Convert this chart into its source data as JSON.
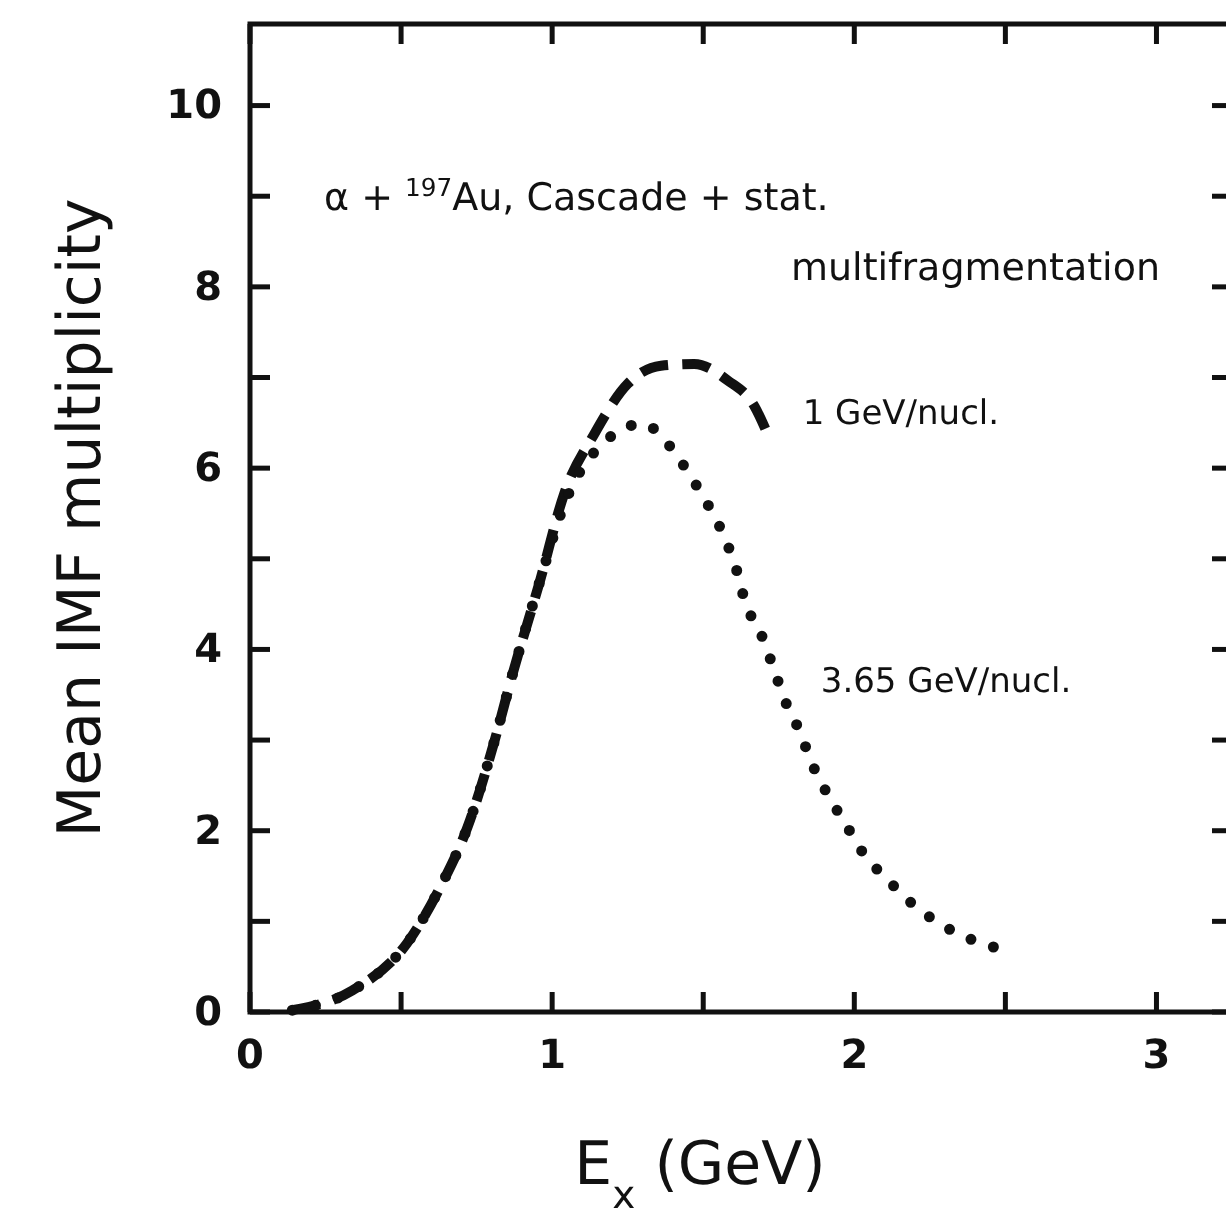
{
  "chart_data": {
    "type": "line",
    "xlabel": "E$_{x}$ (GeV)",
    "ylabel": "Mean IMF multiplicity",
    "annotations": [
      "α + $^{197}$Au, Cascade + stat.",
      "multifragmentation"
    ],
    "xlim": [
      0,
      3.25
    ],
    "ylim": [
      0,
      10.9
    ],
    "xticks": [
      0,
      {
        "value": 0.5,
        "label": null
      },
      1,
      {
        "value": 1.5,
        "label": null
      },
      2,
      {
        "value": 2.5,
        "label": null
      },
      3
    ],
    "yticks": [
      0,
      {
        "value": 1,
        "label": null
      },
      2,
      {
        "value": 3,
        "label": null
      },
      4,
      {
        "value": 5,
        "label": null
      },
      6,
      {
        "value": 7,
        "label": null
      },
      8,
      {
        "value": 9,
        "label": null
      },
      10
    ],
    "grid": false,
    "legend": false,
    "series": [
      {
        "name": "1 GeV/nucl.",
        "color": "#111111",
        "line_style": "dashed",
        "x": [
          0.14,
          0.34,
          0.52,
          0.63,
          0.72,
          0.81,
          0.87,
          0.96,
          1.04,
          1.14,
          1.25,
          1.36,
          1.47,
          1.58,
          1.67,
          1.71
        ],
        "values": [
          0.02,
          0.24,
          0.76,
          1.38,
          2.04,
          3.0,
          3.74,
          4.76,
          5.72,
          6.38,
          6.93,
          7.13,
          7.15,
          6.97,
          6.68,
          6.4
        ]
      },
      {
        "name": "3.65 GeV/nucl.",
        "color": "#111111",
        "line_style": "dotted",
        "x": [
          0.14,
          0.34,
          0.52,
          0.63,
          0.72,
          0.81,
          0.87,
          0.96,
          1.04,
          1.18,
          1.3,
          1.39,
          1.46,
          1.52,
          1.57,
          1.61,
          1.64,
          1.69,
          1.73,
          1.77,
          1.82,
          1.86,
          1.91,
          1.97,
          2.03,
          2.11,
          2.19,
          2.28,
          2.38,
          2.5
        ],
        "values": [
          0.02,
          0.24,
          0.76,
          1.38,
          2.04,
          3.0,
          3.74,
          4.76,
          5.6,
          6.31,
          6.49,
          6.24,
          5.9,
          5.57,
          5.24,
          4.88,
          4.51,
          4.18,
          3.82,
          3.44,
          3.09,
          2.74,
          2.41,
          2.08,
          1.75,
          1.46,
          1.2,
          0.98,
          0.81,
          0.68
        ]
      }
    ]
  }
}
